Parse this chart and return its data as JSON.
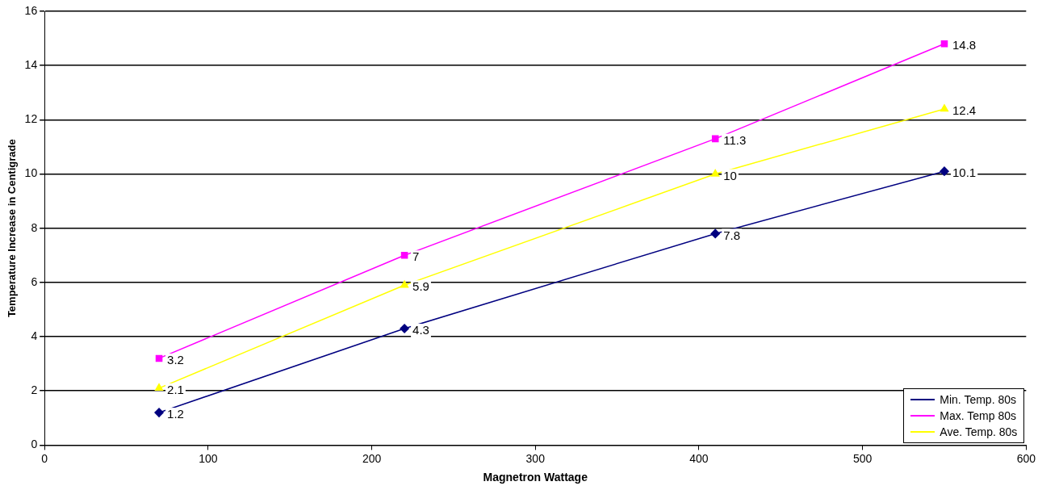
{
  "chart_data": {
    "type": "line",
    "xlabel": "Magnetron Wattage",
    "ylabel": "Temperature Increase in Centigrade",
    "x": [
      70,
      220,
      410,
      550
    ],
    "series": [
      {
        "name": "Min. Temp. 80s",
        "color": "#000080",
        "marker": "diamond",
        "values": [
          1.2,
          4.3,
          7.8,
          10.1
        ]
      },
      {
        "name": "Max. Temp 80s",
        "color": "#ff00ff",
        "marker": "square",
        "values": [
          3.2,
          7,
          11.3,
          14.8
        ]
      },
      {
        "name": "Ave. Temp. 80s",
        "color": "#ffff00",
        "marker": "triangle",
        "values": [
          2.1,
          5.9,
          10,
          12.4
        ]
      }
    ],
    "xlim": [
      0,
      600
    ],
    "xticks": [
      0,
      100,
      200,
      300,
      400,
      500,
      600
    ],
    "ylim": [
      0,
      16
    ],
    "yticks": [
      0,
      2,
      4,
      6,
      8,
      10,
      12,
      14,
      16
    ],
    "grid": "y",
    "legend": "bottom right",
    "data_labels": true
  }
}
